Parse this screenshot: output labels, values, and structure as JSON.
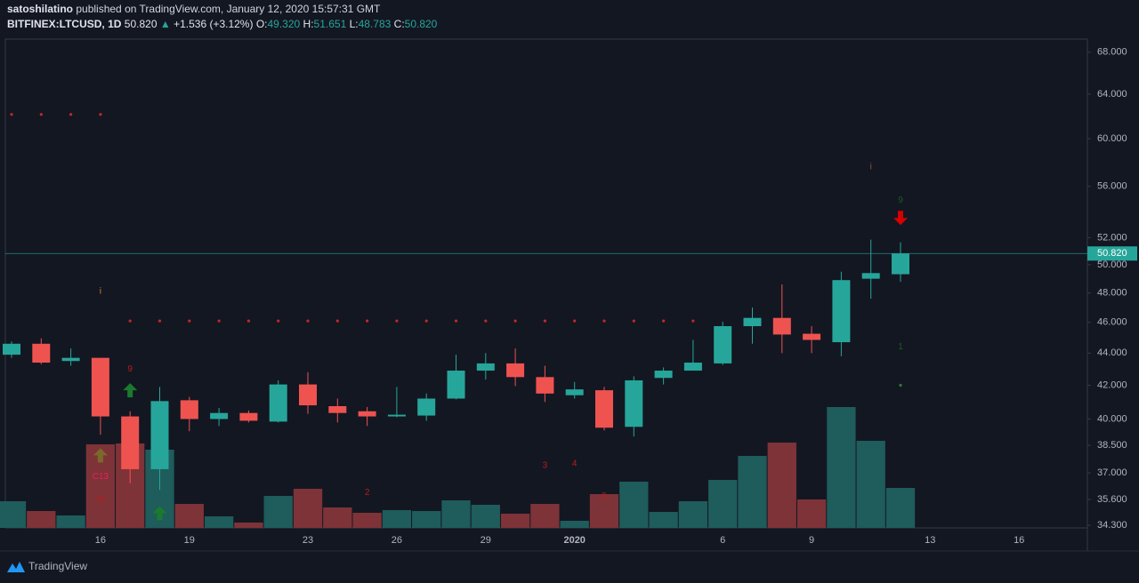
{
  "header": {
    "author": "satoshilatino",
    "published": "published on TradingView.com, January 12, 2020 15:57:31 GMT",
    "symbol": "BITFINEX:LTCUSD, 1D",
    "price": "50.820",
    "arrow": "▲",
    "change": "+1.536 (+3.12%)",
    "o_label": "O:",
    "o": "49.320",
    "h_label": "H:",
    "h": "51.651",
    "l_label": "L:",
    "l": "48.783",
    "c_label": "C:",
    "c": "50.820"
  },
  "footer": {
    "brand": "TradingView"
  },
  "chart_data": {
    "type": "candlestick",
    "log_scale": true,
    "grid": false,
    "categories": [
      null,
      null,
      null,
      "16",
      null,
      null,
      "19",
      null,
      null,
      null,
      "23",
      null,
      null,
      "26",
      null,
      null,
      "29",
      null,
      null,
      "2020",
      null,
      null,
      null,
      null,
      "6",
      null,
      null,
      "9",
      null,
      null,
      null,
      "13",
      null,
      null,
      "16",
      null,
      null,
      null
    ],
    "open": [
      43.9,
      44.6,
      43.5,
      43.7,
      40.15,
      37.2,
      41.1,
      40.0,
      40.35,
      39.85,
      42.05,
      40.75,
      40.45,
      40.15,
      40.2,
      41.2,
      42.9,
      43.35,
      42.5,
      41.4,
      41.7,
      39.55,
      42.45,
      42.9,
      43.35,
      45.75,
      46.3,
      45.25,
      44.7,
      49.0,
      49.32,
      null,
      null,
      null,
      null,
      null,
      null,
      null
    ],
    "high": [
      44.75,
      44.95,
      44.3,
      43.7,
      40.45,
      41.9,
      41.3,
      40.65,
      40.5,
      42.3,
      42.8,
      41.2,
      40.7,
      41.9,
      41.5,
      43.9,
      44.0,
      44.3,
      43.2,
      42.2,
      41.9,
      42.55,
      43.1,
      44.85,
      46.05,
      47.0,
      48.6,
      45.75,
      49.5,
      51.85,
      51.651,
      null,
      null,
      null,
      null,
      null,
      null,
      null
    ],
    "low": [
      43.7,
      43.3,
      43.2,
      39.1,
      36.45,
      36.1,
      39.3,
      39.6,
      39.8,
      39.8,
      40.3,
      39.8,
      39.6,
      40.1,
      39.9,
      41.15,
      42.35,
      41.95,
      41.0,
      41.2,
      39.35,
      39.0,
      42.05,
      42.9,
      43.25,
      44.6,
      44.0,
      44.0,
      43.8,
      47.6,
      48.783,
      null,
      null,
      null,
      null,
      null,
      null,
      null
    ],
    "close": [
      44.6,
      43.4,
      43.7,
      40.15,
      37.2,
      41.05,
      40.0,
      40.35,
      39.9,
      42.05,
      40.8,
      40.35,
      40.15,
      40.25,
      41.2,
      42.9,
      43.35,
      42.5,
      41.5,
      41.75,
      39.5,
      42.3,
      42.9,
      43.4,
      45.75,
      46.3,
      45.2,
      44.85,
      48.9,
      49.4,
      50.82,
      null,
      null,
      null,
      null,
      null,
      null,
      null
    ],
    "volume": [
      30,
      19,
      14,
      94,
      95,
      88,
      27,
      13,
      6,
      36,
      44,
      23,
      17,
      20,
      19,
      31,
      26,
      16,
      27,
      8,
      38,
      52,
      18,
      30,
      54,
      81,
      96,
      32,
      136,
      98,
      45,
      null,
      null,
      null,
      null,
      null,
      null,
      null
    ],
    "vlim": [
      0,
      550
    ],
    "ylim": [
      34.17,
      69.3
    ],
    "yticks": [
      {
        "value": 34.3,
        "label": "34.300"
      },
      {
        "value": 35.6,
        "label": "35.600"
      },
      {
        "value": 37,
        "label": "37.000"
      },
      {
        "value": 38.5,
        "label": "38.500"
      },
      {
        "value": 40,
        "label": "40.000"
      },
      {
        "value": 42,
        "label": "42.000"
      },
      {
        "value": 44,
        "label": "44.000"
      },
      {
        "value": 46,
        "label": "46.000"
      },
      {
        "value": 48,
        "label": "48.000"
      },
      {
        "value": 50,
        "label": "50.000"
      },
      {
        "value": 52,
        "label": "52.000"
      },
      {
        "value": 56,
        "label": "56.000"
      },
      {
        "value": 60,
        "label": "60.000"
      },
      {
        "value": 64,
        "label": "64.000"
      },
      {
        "value": 68,
        "label": "68.000"
      }
    ],
    "last_price": {
      "value": 50.82,
      "label": "50.820"
    },
    "colors": {
      "up": "#26a69a",
      "down": "#ef5350",
      "up_volume": "#1f5c5c",
      "down_volume": "#7e3338",
      "last": "#26a69a"
    },
    "annotations": [
      {
        "text": "9",
        "index": 4,
        "price": 43.0,
        "color": "#b71c1c"
      },
      {
        "text": "C13",
        "index": 3,
        "price": 36.8,
        "color": "#e91e63"
      },
      {
        "text": "11",
        "index": 3,
        "price": 35.6,
        "color": "#b71c1c"
      },
      {
        "text": "2",
        "index": 12,
        "price": 35.95,
        "color": "#b71c1c"
      },
      {
        "text": "3",
        "index": 18,
        "price": 37.4,
        "color": "#b71c1c"
      },
      {
        "text": "4",
        "index": 19,
        "price": 37.5,
        "color": "#b71c1c"
      },
      {
        "text": "5",
        "index": 20,
        "price": 35.75,
        "color": "#b71c1c"
      },
      {
        "text": "9",
        "index": 30,
        "price": 54.9,
        "color": "#1b5e20"
      },
      {
        "text": "1",
        "index": 30,
        "price": 44.4,
        "color": "#1b5e20"
      },
      {
        "text": "i",
        "index": 3,
        "price": 48.1,
        "color": "#e67e22"
      },
      {
        "text": "i",
        "index": 29,
        "price": 57.6,
        "color": "#a0522d"
      }
    ],
    "arrows": [
      {
        "direction": "up",
        "index": 4,
        "price": 41.7,
        "color": "#1b7a2e"
      },
      {
        "direction": "up",
        "index": 3,
        "price": 37.95,
        "color": "#7a6a2a"
      },
      {
        "direction": "up",
        "index": 5,
        "price": 34.9,
        "color": "#1b7a2e"
      },
      {
        "direction": "down",
        "index": 30,
        "price": 53.5,
        "color": "#d50000"
      }
    ],
    "dots": [
      {
        "index": 0,
        "price": 62.15,
        "color": "#c62828"
      },
      {
        "index": 1,
        "price": 62.15,
        "color": "#c62828"
      },
      {
        "index": 2,
        "price": 62.15,
        "color": "#c62828"
      },
      {
        "index": 3,
        "price": 62.15,
        "color": "#c62828"
      },
      {
        "index": 4,
        "price": 46.1,
        "color": "#c62828"
      },
      {
        "index": 5,
        "price": 46.1,
        "color": "#c62828"
      },
      {
        "index": 6,
        "price": 46.1,
        "color": "#c62828"
      },
      {
        "index": 7,
        "price": 46.1,
        "color": "#c62828"
      },
      {
        "index": 8,
        "price": 46.1,
        "color": "#c62828"
      },
      {
        "index": 9,
        "price": 46.1,
        "color": "#c62828"
      },
      {
        "index": 10,
        "price": 46.1,
        "color": "#c62828"
      },
      {
        "index": 11,
        "price": 46.1,
        "color": "#c62828"
      },
      {
        "index": 12,
        "price": 46.1,
        "color": "#c62828"
      },
      {
        "index": 13,
        "price": 46.1,
        "color": "#c62828"
      },
      {
        "index": 14,
        "price": 46.1,
        "color": "#c62828"
      },
      {
        "index": 15,
        "price": 46.1,
        "color": "#c62828"
      },
      {
        "index": 16,
        "price": 46.1,
        "color": "#c62828"
      },
      {
        "index": 17,
        "price": 46.1,
        "color": "#c62828"
      },
      {
        "index": 18,
        "price": 46.1,
        "color": "#c62828"
      },
      {
        "index": 19,
        "price": 46.1,
        "color": "#c62828"
      },
      {
        "index": 20,
        "price": 46.1,
        "color": "#c62828"
      },
      {
        "index": 21,
        "price": 46.1,
        "color": "#c62828"
      },
      {
        "index": 22,
        "price": 46.1,
        "color": "#c62828"
      },
      {
        "index": 23,
        "price": 46.1,
        "color": "#c62828"
      },
      {
        "index": 30,
        "price": 42.0,
        "color": "#2e7d32"
      }
    ]
  }
}
